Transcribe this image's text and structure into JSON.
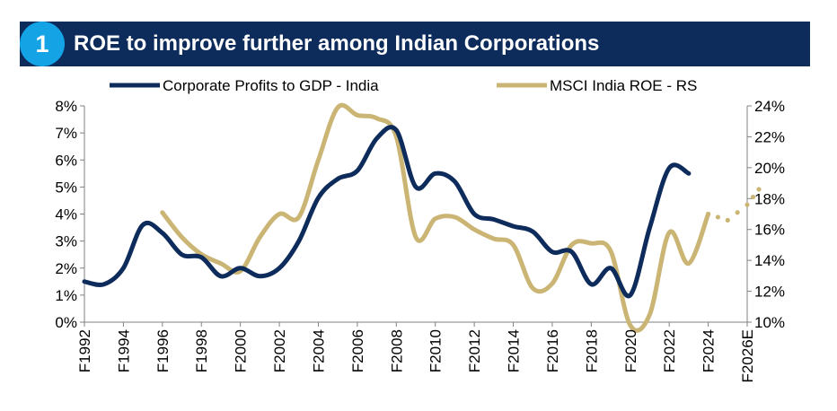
{
  "header": {
    "badge": "1",
    "title": "ROE to improve further among Indian Corporations"
  },
  "colors": {
    "title_bg": "#0d2b5b",
    "badge_bg": "#14a4e6",
    "profits_series": "#0d2b5b",
    "roe_series": "#cbb575"
  },
  "chart_data": {
    "type": "line",
    "xlabels": [
      "F1992",
      "F1994",
      "F1996",
      "F1998",
      "F2000",
      "F2002",
      "F2004",
      "F2006",
      "F2008",
      "F2010",
      "F2012",
      "F2014",
      "F2016",
      "F2018",
      "F2020",
      "F2022",
      "F2024",
      "F2026E"
    ],
    "x_range": [
      1992,
      2026
    ],
    "yleft": {
      "ticks": [
        "0%",
        "1%",
        "2%",
        "3%",
        "4%",
        "5%",
        "6%",
        "7%",
        "8%"
      ],
      "range": [
        0,
        8
      ]
    },
    "yright": {
      "ticks": [
        "10%",
        "12%",
        "14%",
        "16%",
        "18%",
        "20%",
        "22%",
        "24%"
      ],
      "range": [
        10,
        24
      ]
    },
    "legend_position": "top",
    "series": [
      {
        "name": "Corporate Profits to GDP - India",
        "axis": "left",
        "x": [
          1992,
          1993,
          1994,
          1995,
          1996,
          1997,
          1998,
          1999,
          2000,
          2001,
          2002,
          2003,
          2004,
          2005,
          2006,
          2007,
          2008,
          2009,
          2010,
          2011,
          2012,
          2013,
          2014,
          2015,
          2016,
          2017,
          2018,
          2019,
          2020,
          2021,
          2022,
          2023
        ],
        "values": [
          1.5,
          1.4,
          2.0,
          3.6,
          3.3,
          2.5,
          2.4,
          1.7,
          2.0,
          1.7,
          2.0,
          3.0,
          4.6,
          5.3,
          5.6,
          6.8,
          7.1,
          5.0,
          5.5,
          5.2,
          4.0,
          3.8,
          3.55,
          3.35,
          2.6,
          2.6,
          1.4,
          2.0,
          1.0,
          3.5,
          5.7,
          5.5
        ]
      },
      {
        "name": "MSCI India ROE - RS",
        "axis": "right",
        "x": [
          1996,
          1997,
          1998,
          1999,
          2000,
          2001,
          2002,
          2003,
          2004,
          2005,
          2006,
          2007,
          2008,
          2009,
          2010,
          2011,
          2012,
          2013,
          2014,
          2015,
          2016,
          2017,
          2018,
          2019,
          2020,
          2021,
          2022,
          2023,
          2024
        ],
        "values": [
          17.1,
          15.5,
          14.4,
          13.8,
          13.3,
          15.5,
          17.0,
          16.8,
          20.5,
          23.9,
          23.4,
          23.2,
          22.0,
          15.5,
          16.7,
          16.8,
          16.0,
          15.4,
          15.0,
          12.2,
          12.5,
          15.0,
          15.1,
          14.6,
          9.8,
          10.5,
          15.8,
          13.8,
          17.0
        ]
      },
      {
        "name": "",
        "axis": "right",
        "style": "dotted",
        "x": [
          2024,
          2025,
          2026,
          2026.6
        ],
        "values": [
          17.0,
          16.6,
          17.6,
          18.6
        ]
      }
    ]
  }
}
